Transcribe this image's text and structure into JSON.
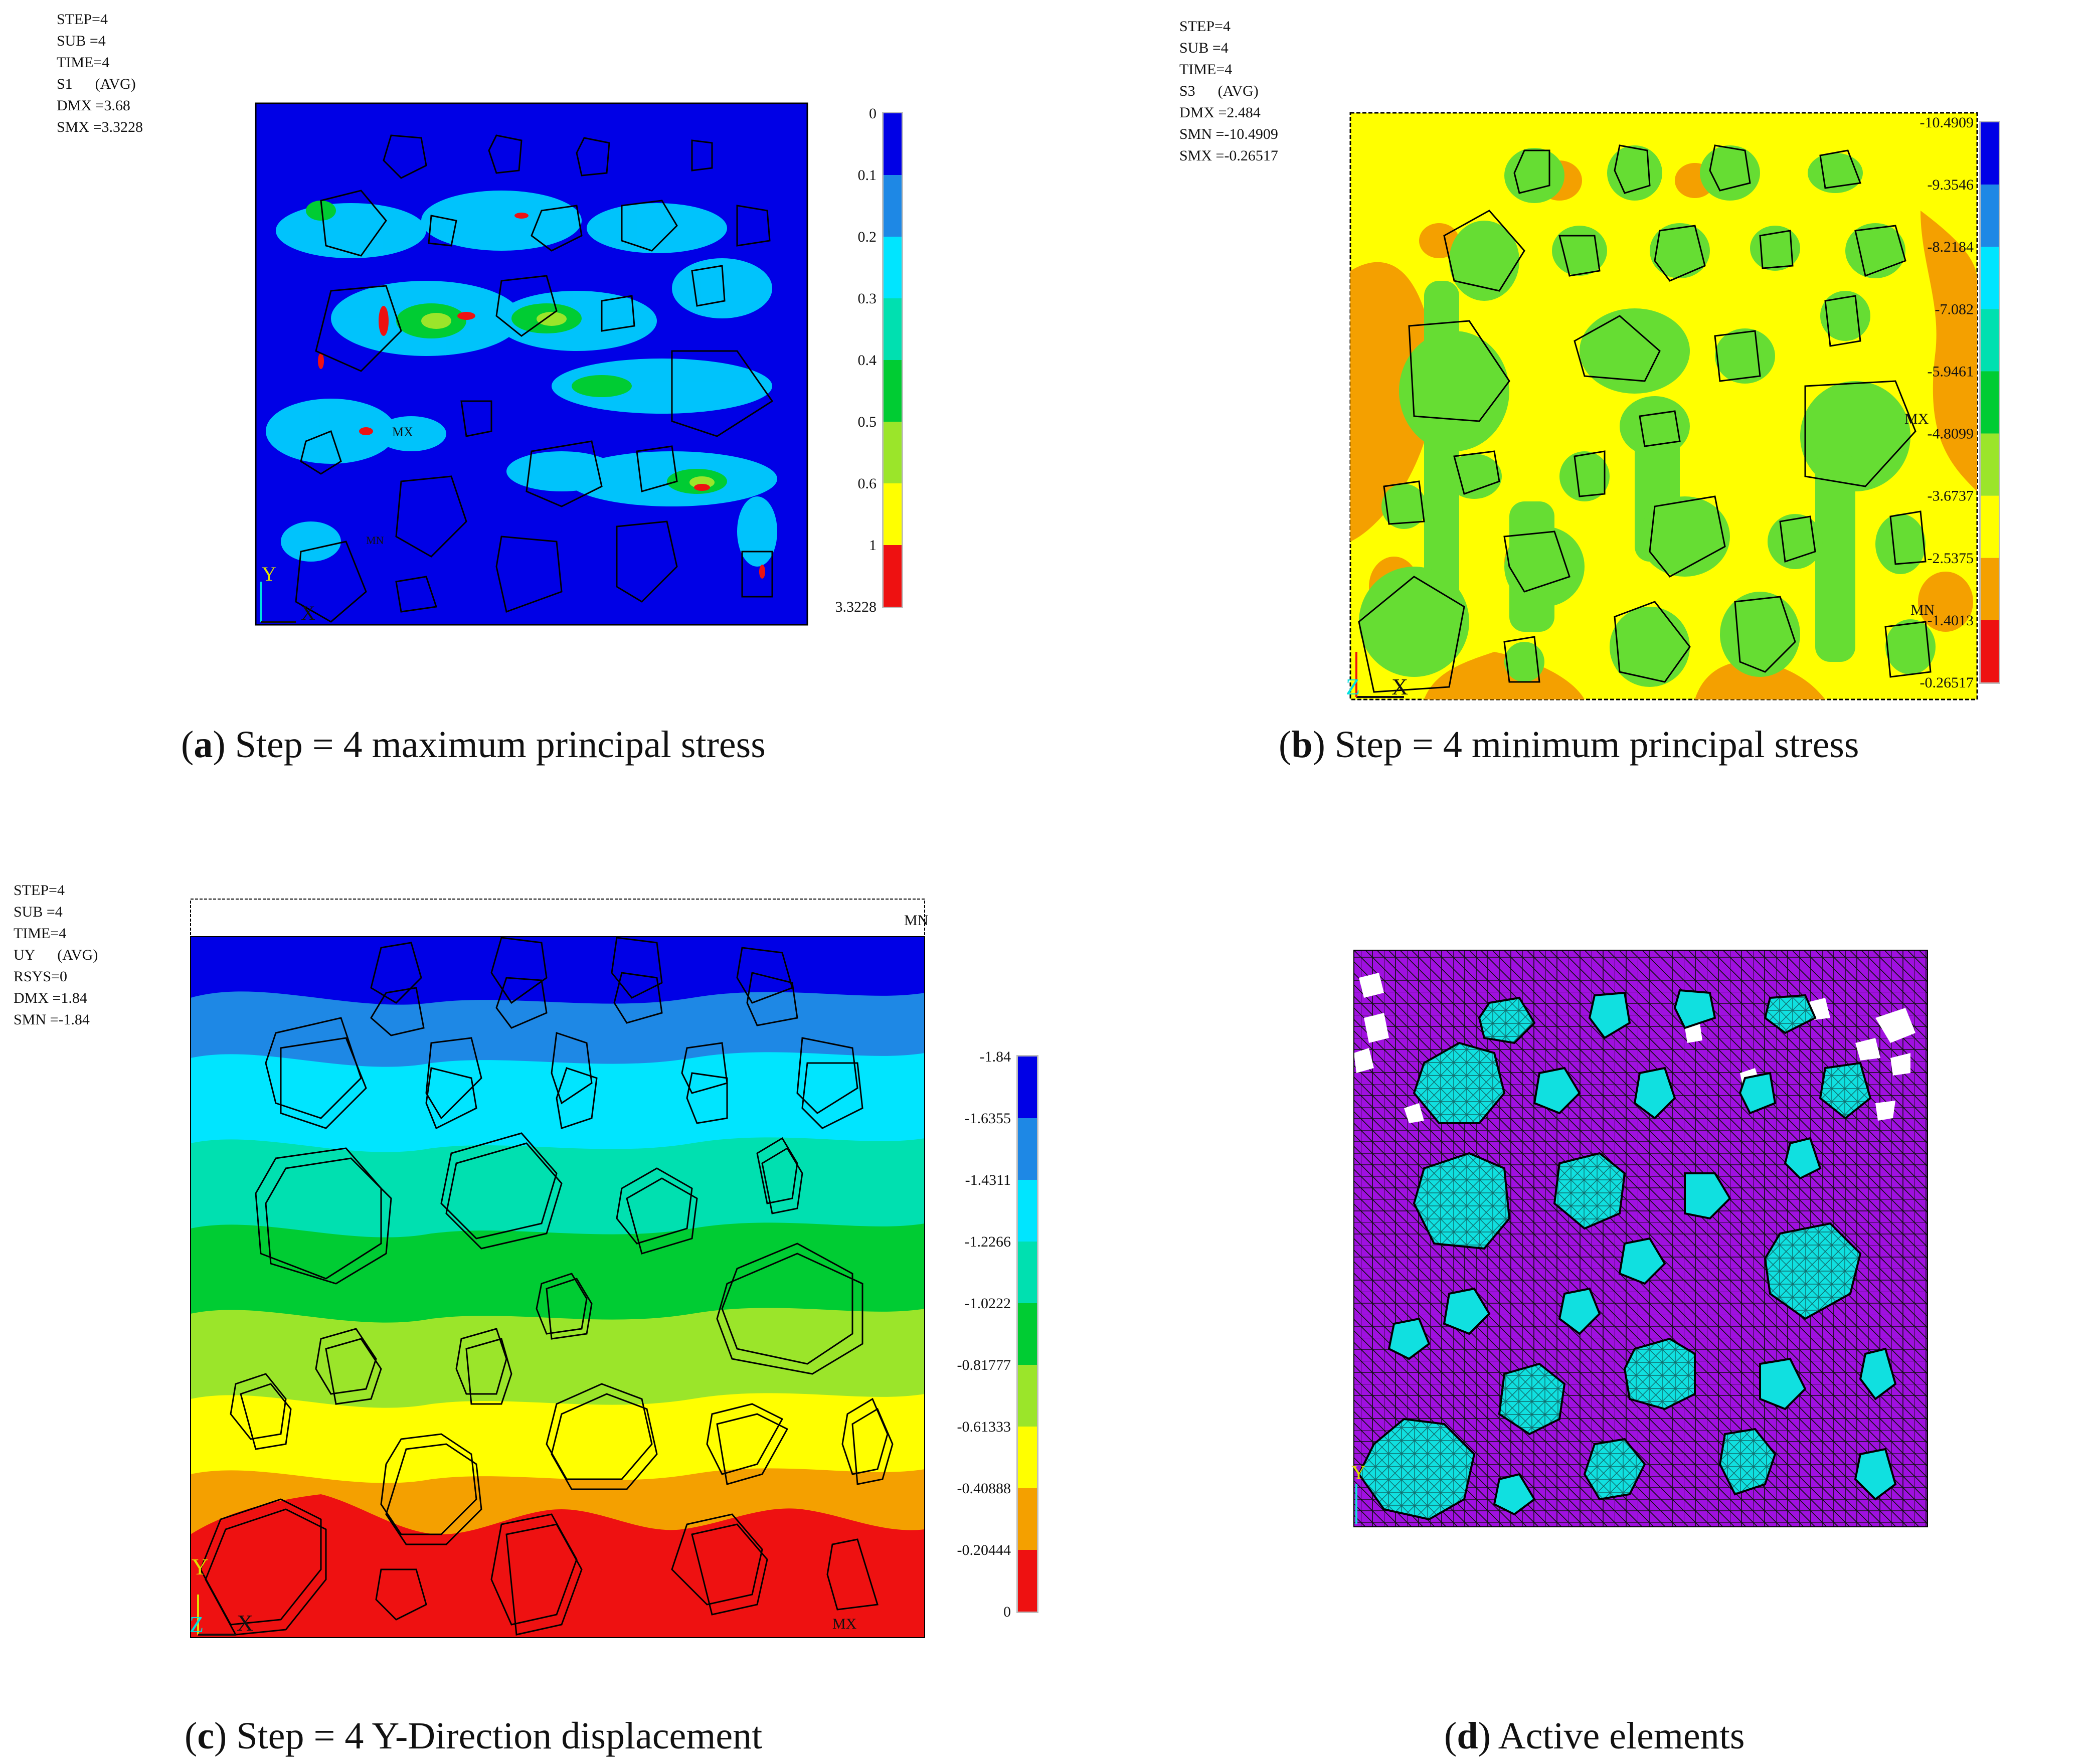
{
  "panels": [
    {
      "id": "a",
      "info": [
        "STEP=4",
        "SUB =4",
        "TIME=4",
        "S1      (AVG)",
        "DMX =3.68",
        "SMX =3.3228"
      ],
      "legend": {
        "labels": [
          "0",
          "0.1",
          "0.2",
          "0.3",
          "0.4",
          "0.5",
          "0.6",
          "1",
          "3.3228"
        ],
        "colors": [
          "#0000e6",
          "#1e88e5",
          "#00e5ff",
          "#00e0b0",
          "#00cc33",
          "#9be52a",
          "#ffff00",
          "#ee1111"
        ]
      },
      "markers": [
        "MX",
        "MN"
      ],
      "axes": [
        "Y",
        "X"
      ],
      "caption": {
        "letter": "a",
        "text": ") Step = 4 maximum principal stress"
      }
    },
    {
      "id": "b",
      "info": [
        "STEP=4",
        "SUB =4",
        "TIME=4",
        "S3      (AVG)",
        "DMX =2.484",
        "SMN =-10.4909",
        "SMX =-0.26517"
      ],
      "legend": {
        "labels": [
          "-10.4909",
          "-9.3546",
          "-8.2184",
          "-7.082",
          "-5.9461",
          "-4.8099",
          "-3.6737",
          "-2.5375",
          "-1.4013",
          "-0.26517"
        ],
        "colors": [
          "#0000e6",
          "#1e88e5",
          "#00e5ff",
          "#00e0b0",
          "#00cc33",
          "#9be52a",
          "#ffff00",
          "#f4a000",
          "#ee1111"
        ]
      },
      "markers": [
        "MX",
        "MN"
      ],
      "axes": [
        "Z",
        "X"
      ],
      "caption": {
        "letter": "b",
        "text": ") Step = 4 minimum principal stress"
      }
    },
    {
      "id": "c",
      "info": [
        "STEP=4",
        "SUB =4",
        "TIME=4",
        "UY      (AVG)",
        "RSYS=0",
        "DMX =1.84",
        "SMN =-1.84"
      ],
      "legend": {
        "labels": [
          "-1.84",
          "-1.6355",
          "-1.4311",
          "-1.2266",
          "-1.0222",
          "-0.81777",
          "-0.61333",
          "-0.40888",
          "-0.20444",
          "0"
        ],
        "colors": [
          "#0000e6",
          "#1e88e5",
          "#00e5ff",
          "#00e0b0",
          "#00cc33",
          "#9be52a",
          "#ffff00",
          "#f4a000",
          "#ee1111"
        ]
      },
      "markers": [
        "MN",
        "MX"
      ],
      "axes": [
        "Y",
        "Z",
        "X"
      ],
      "caption": {
        "letter": "c",
        "text": ") Step = 4 Y-Direction displacement"
      }
    },
    {
      "id": "d",
      "colors": {
        "matrix": "#a010e0",
        "aggregate": "#10e0e0"
      },
      "axes": [
        "Y"
      ],
      "caption": {
        "letter": "d",
        "text": ") Active elements"
      }
    }
  ]
}
